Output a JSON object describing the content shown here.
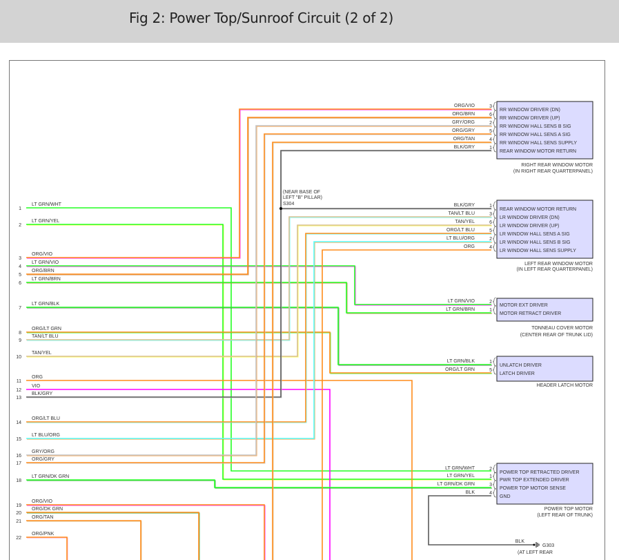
{
  "header": {
    "title": "Fig 2: Power Top/Sunroof Circuit (2 of 2)"
  },
  "colors": {
    "ORG": "#ff8c1a",
    "VIO": "#ff00ff",
    "LT GRN": "#22ff22",
    "GRY": "#c4c4c4",
    "BLK": "#5a5a5a",
    "TAN": "#d8c090",
    "LT BLU": "#55ffff",
    "BRN": "#c08040",
    "WHT": "#ffffff",
    "YEL": "#ffff33",
    "PNK": "#ff99cc",
    "DK GRN": "#2e9e2e",
    "component_fill": "#dcdcff",
    "component_border": "#222222",
    "title_bar": "#d3d3d3"
  },
  "connector_wires": [
    {
      "pin": "1",
      "label": "LT GRN/WHT"
    },
    {
      "pin": "2",
      "label": "LT GRN/YEL"
    },
    {
      "pin": "3",
      "label": "ORG/VIO"
    },
    {
      "pin": "4",
      "label": "LT GRN/VIO"
    },
    {
      "pin": "5",
      "label": "ORG/BRN"
    },
    {
      "pin": "6",
      "label": "LT GRN/BRN"
    },
    {
      "pin": "7",
      "label": "LT GRN/BLK"
    },
    {
      "pin": "8",
      "label": "ORG/LT GRN"
    },
    {
      "pin": "9",
      "label": "TAN/LT BLU"
    },
    {
      "pin": "10",
      "label": "TAN/YEL"
    },
    {
      "pin": "11",
      "label": "ORG"
    },
    {
      "pin": "12",
      "label": "VIO"
    },
    {
      "pin": "13",
      "label": "BLK/GRY"
    },
    {
      "pin": "14",
      "label": "ORG/LT BLU"
    },
    {
      "pin": "15",
      "label": "LT BLU/ORG"
    },
    {
      "pin": "16",
      "label": "GRY/ORG"
    },
    {
      "pin": "17",
      "label": "ORG/GRY"
    },
    {
      "pin": "18",
      "label": "LT GRN/DK GRN"
    },
    {
      "pin": "19",
      "label": "ORG/VIO"
    },
    {
      "pin": "20",
      "label": "ORG/DK GRN"
    },
    {
      "pin": "21",
      "label": "ORG/TAN"
    },
    {
      "pin": "22",
      "label": "ORG/PNK"
    }
  ],
  "components": [
    {
      "name": "RIGHT REAR WINDOW MOTOR",
      "location": "(IN RIGHT REAR QUARTERPANEL)",
      "pins": [
        {
          "pin": "3",
          "wire": "ORG/VIO",
          "function": "RR WINDOW DRIVER (DN)"
        },
        {
          "pin": "6",
          "wire": "ORG/BRN",
          "function": "RR WINDOW DRIVER (UP)"
        },
        {
          "pin": "2",
          "wire": "GRY/ORG",
          "function": "RR WINDOW HALL SENS B SIG"
        },
        {
          "pin": "5",
          "wire": "ORG/GRY",
          "function": "RR WINDOW HALL SENS A SIG"
        },
        {
          "pin": "4",
          "wire": "ORG/TAN",
          "function": "RR WINDOW HALL SENS SUPPLY"
        },
        {
          "pin": "1",
          "wire": "BLK/GRY",
          "function": "REAR WINDOW MOTOR RETURN"
        }
      ]
    },
    {
      "name": "LEFT REAR WINDOW MOTOR",
      "location": "(IN LEFT REAR QUARTERPANEL)",
      "pins": [
        {
          "pin": "1",
          "wire": "BLK/GRY",
          "function": "REAR WINDOW MOTOR RETURN"
        },
        {
          "pin": "3",
          "wire": "TAN/LT BLU",
          "function": "LR WINDOW DRIVER (DN)"
        },
        {
          "pin": "6",
          "wire": "TAN/YEL",
          "function": "LR WINDOW DRIVER (UP)"
        },
        {
          "pin": "5",
          "wire": "ORG/LT BLU",
          "function": "LR WINDOW HALL SENS A SIG"
        },
        {
          "pin": "2",
          "wire": "LT BLU/ORG",
          "function": "LR WINDOW HALL SENS B SIG"
        },
        {
          "pin": "4",
          "wire": "ORG",
          "function": "LR WINDOW HALL SENS SUPPLY"
        }
      ]
    },
    {
      "name": "TONNEAU COVER MOTOR",
      "location": "(CENTER REAR OF TRUNK LID)",
      "pins": [
        {
          "pin": "2",
          "wire": "LT GRN/VIO",
          "function": "MOTOR EXT DRIVER"
        },
        {
          "pin": "1",
          "wire": "LT GRN/BRN",
          "function": "MOTOR RETRACT DRIVER"
        }
      ]
    },
    {
      "name": "HEADER LATCH MOTOR",
      "location": "",
      "pins": [
        {
          "pin": "1",
          "wire": "LT GRN/BLK",
          "function": "UNLATCH DRIVER"
        },
        {
          "pin": "5",
          "wire": "ORG/LT GRN",
          "function": "LATCH DRIVER"
        }
      ]
    },
    {
      "name": "POWER TOP MOTOR",
      "location": "(LEFT REAR OF TRUNK)",
      "pins": [
        {
          "pin": "2",
          "wire": "LT GRN/WHT",
          "function": "POWER TOP RETRACTED DRIVER"
        },
        {
          "pin": "1",
          "wire": "LT GRN/YEL",
          "function": "PWR TOP EXTENDED DRIVER"
        },
        {
          "pin": "3",
          "wire": "LT GRN/DK GRN",
          "function": "POWER TOP MOTOR SENSE"
        },
        {
          "pin": "4",
          "wire": "BLK",
          "function": "GND"
        }
      ]
    }
  ],
  "splice": {
    "id": "S304",
    "location_line1": "(NEAR BASE OF",
    "location_line2": "LEFT \"B\" PILLAR)"
  },
  "ground": {
    "id": "G303",
    "wire": "BLK",
    "location": "(AT LEFT REAR"
  }
}
